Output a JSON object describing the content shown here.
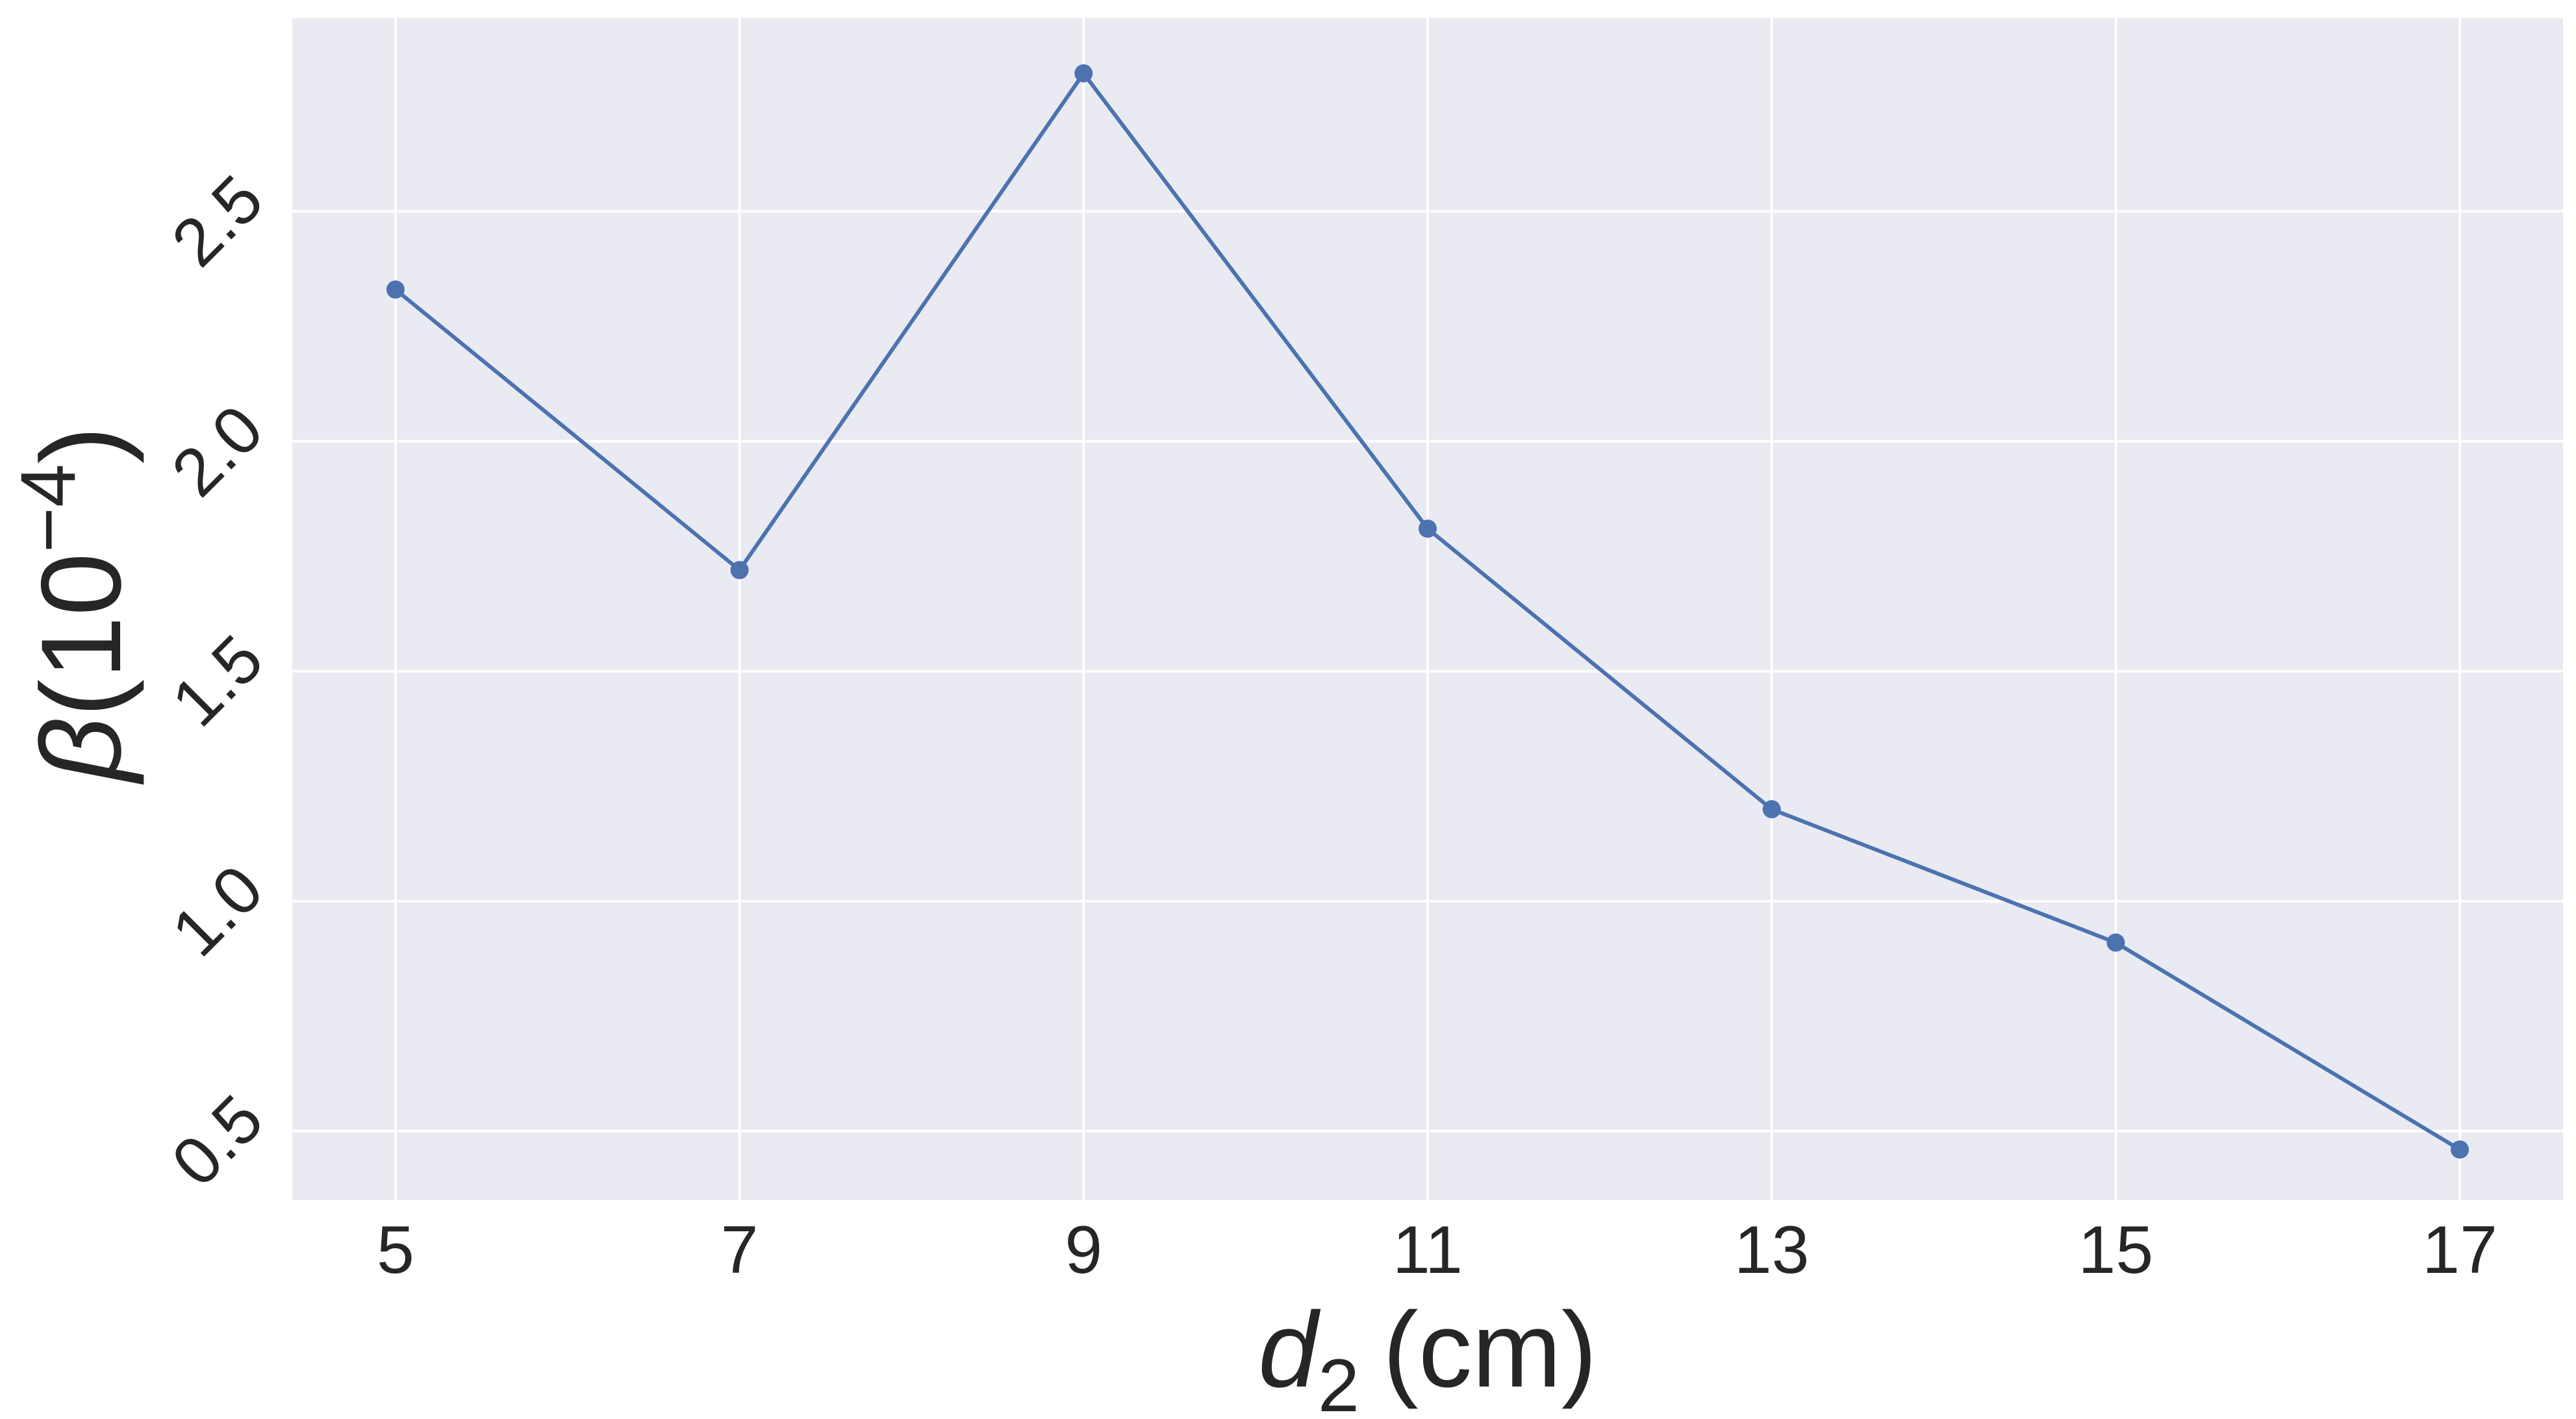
{
  "chart_data": {
    "type": "line",
    "title": "",
    "xlabel": "d2 (cm)",
    "xlabel_base": "d",
    "xlabel_sub": "2",
    "xlabel_unit": "(cm)",
    "ylabel": "β(10⁻⁴)",
    "ylabel_symbol": "β",
    "ylabel_open": "(10",
    "ylabel_sup": "−4",
    "ylabel_close": ")",
    "x": [
      5,
      7,
      9,
      11,
      13,
      15,
      17
    ],
    "series": [
      {
        "values": [
          2.33,
          1.72,
          2.8,
          1.81,
          1.2,
          0.91,
          0.46
        ],
        "color": "#4c72b0"
      }
    ],
    "xticks": [
      "5",
      "7",
      "9",
      "11",
      "13",
      "15",
      "17"
    ],
    "yticks": [
      "0.5",
      "1.0",
      "1.5",
      "2.0",
      "2.5"
    ],
    "xlim": [
      4.4,
      17.6
    ],
    "ylim": [
      0.35,
      2.92
    ],
    "grid": true,
    "background_color": "#eaeaf2",
    "grid_color": "#ffffff",
    "text_color": "#262626"
  }
}
